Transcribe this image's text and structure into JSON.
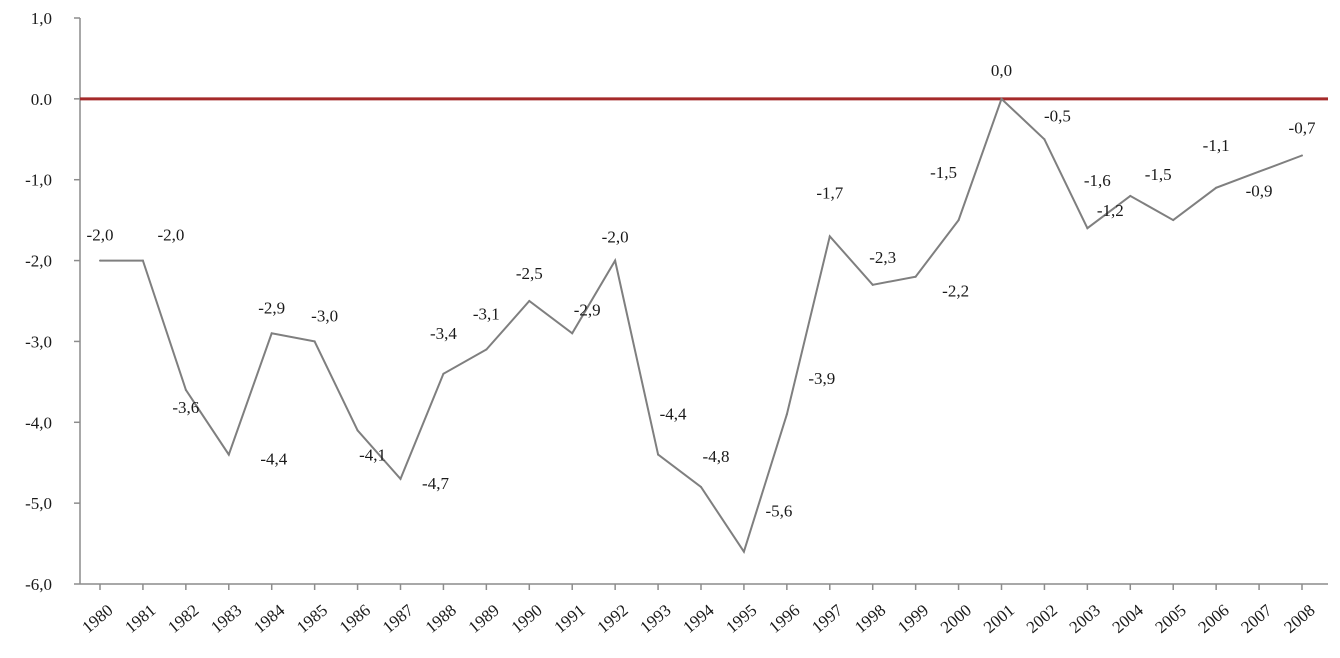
{
  "chart_data": {
    "type": "line",
    "title": "",
    "xlabel": "",
    "ylabel": "",
    "x": [
      "1980",
      "1981",
      "1982",
      "1983",
      "1984",
      "1985",
      "1986",
      "1987",
      "1988",
      "1989",
      "1990",
      "1991",
      "1992",
      "1993",
      "1994",
      "1995",
      "1996",
      "1997",
      "1998",
      "1999",
      "2000",
      "2001",
      "2002",
      "2003",
      "2004",
      "2005",
      "2006",
      "2007",
      "2008"
    ],
    "series": [
      {
        "values": [
          -2.0,
          -2.0,
          -3.6,
          -4.4,
          -2.9,
          -3.0,
          -4.1,
          -4.7,
          -3.4,
          -3.1,
          -2.5,
          -2.9,
          -2.0,
          -4.4,
          -4.8,
          -5.6,
          -3.9,
          -1.7,
          -2.3,
          -2.2,
          -1.5,
          0.0,
          -0.5,
          -1.6,
          -1.2,
          -1.5,
          -1.1,
          -0.9,
          -0.7
        ],
        "data_labels": [
          "-2,0",
          "-2,0",
          "-3,6",
          "-4,4",
          "-2,9",
          "-3,0",
          "-4,1",
          "-4,7",
          "-3,4",
          "-3,1",
          "-2,5",
          "-2,9",
          "-2,0",
          "-4,4",
          "-4,8",
          "-5,6",
          "-3,9",
          "-1,7",
          "-2,3",
          "-2,2",
          "-1,5",
          "0,0",
          "-0,5",
          "-1,6",
          "-1,2",
          "-1,5",
          "-1,1",
          "-0,9",
          "-0,7"
        ],
        "color": "#7f7f7f"
      }
    ],
    "ylim": [
      -6.0,
      1.0
    ],
    "y_ticks": [
      {
        "value": 1.0,
        "label": "1,0"
      },
      {
        "value": 0.0,
        "label": "0.0"
      },
      {
        "value": -1.0,
        "label": "-1,0"
      },
      {
        "value": -2.0,
        "label": "-2,0"
      },
      {
        "value": -3.0,
        "label": "-3,0"
      },
      {
        "value": -4.0,
        "label": "-4,0"
      },
      {
        "value": -5.0,
        "label": "-5,0"
      },
      {
        "value": -6.0,
        "label": "-6,0"
      }
    ],
    "reference_line": {
      "value": 0.0,
      "color": "#a52a2a"
    },
    "grid": false,
    "legend": "none",
    "axis_color": "#8c8c8c"
  }
}
